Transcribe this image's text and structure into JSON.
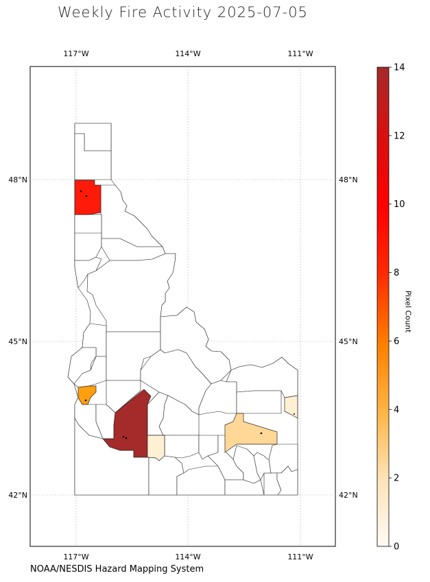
{
  "title": "Weekly Fire Activity 2025-07-05",
  "credit": "NOAA/NESDIS Hazard Mapping System",
  "map": {
    "lon_ticks": [
      "117°W",
      "114°W",
      "111°W"
    ],
    "lat_ticks": [
      "48°N",
      "45°N",
      "42°N"
    ],
    "lon_values": [
      -117,
      -114,
      -111
    ],
    "lat_values": [
      48,
      45,
      42
    ],
    "lon_range": [
      -118.2,
      -110.05
    ],
    "lat_range": [
      41.05,
      49.15
    ],
    "grid": true
  },
  "colorbar": {
    "label": "Pixel Count",
    "ticks": [
      "0",
      "2",
      "4",
      "6",
      "8",
      "10",
      "12",
      "14"
    ],
    "range": [
      0,
      14
    ],
    "colors": [
      "#fff6e8",
      "#ffd58f",
      "#ffa500",
      "#ff5400",
      "#ff0000",
      "#b50000",
      "#a52a2a"
    ]
  },
  "highlighted_counties": [
    {
      "region": "north panhandle",
      "count": 9,
      "color": "#ff1a0a"
    },
    {
      "region": "southwest",
      "count": 14,
      "color": "#a52a2a"
    },
    {
      "region": "west border",
      "count": 5,
      "color": "#ff9f10"
    },
    {
      "region": "south central",
      "count": 3,
      "color": "#ffd796"
    },
    {
      "region": "south",
      "count": 1,
      "color": "#fff0d4"
    },
    {
      "region": "east border",
      "count": 1,
      "color": "#fff0d4"
    }
  ]
}
